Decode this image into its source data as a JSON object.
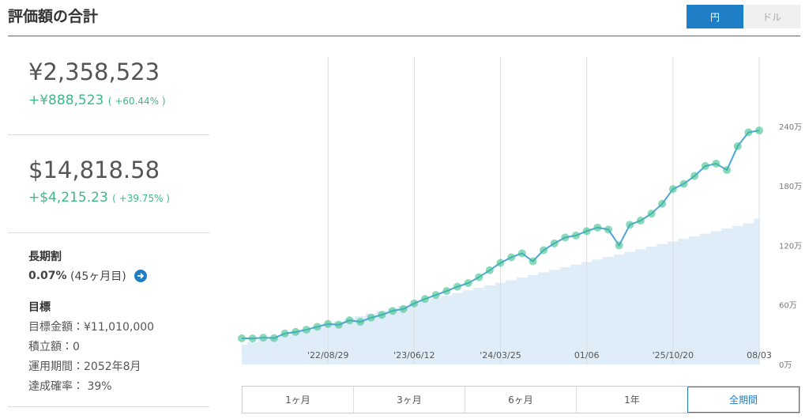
{
  "header": {
    "title": "評価額の合計",
    "currency_toggle": [
      "円",
      "ドル"
    ],
    "active_currency": 0
  },
  "summary": [
    {
      "value": "¥2,358,523",
      "change": "+¥888,523",
      "change_pct": "( +60.44% )"
    },
    {
      "value": "$14,818.58",
      "change": "+$4,215.23",
      "change_pct": "( +39.75% )"
    }
  ],
  "long_term": {
    "title": "長期割",
    "rate": "0.07%",
    "months": "(45ヶ月目)"
  },
  "goal": {
    "title": "目標",
    "items": [
      "目標金額：¥11,010,000",
      "積立額：0",
      "運用期間：2052年8月",
      "達成確率： 39%"
    ]
  },
  "chart_data": {
    "type": "line",
    "categories": [
      null,
      null,
      null,
      null,
      null,
      null,
      null,
      null,
      "'22/08/29",
      null,
      null,
      null,
      null,
      null,
      null,
      null,
      "'23/06/12",
      null,
      null,
      null,
      null,
      null,
      null,
      null,
      "'24/03/25",
      null,
      null,
      null,
      null,
      null,
      null,
      null,
      "01/06",
      null,
      null,
      null,
      null,
      null,
      null,
      null,
      "'25/10/20",
      null,
      null,
      null,
      null,
      null,
      null,
      null,
      "08/03"
    ],
    "series": [
      {
        "kind": "area",
        "color": "#deedf8",
        "values": [
          200000,
          226000,
          252000,
          278000,
          304000,
          330000,
          356000,
          382000,
          408000,
          434000,
          460000,
          486000,
          512000,
          538000,
          564000,
          590000,
          616000,
          642000,
          668000,
          694000,
          720000,
          746000,
          772000,
          798000,
          824000,
          850000,
          876000,
          902000,
          928000,
          954000,
          980000,
          1006000,
          1032000,
          1058000,
          1084000,
          1110000,
          1136000,
          1162000,
          1188000,
          1214000,
          1240000,
          1266000,
          1292000,
          1318000,
          1344000,
          1370000,
          1396000,
          1422000,
          1470000
        ]
      },
      {
        "kind": "line",
        "color": "#4ea4dc",
        "marker_color": "#3cc08e",
        "values": [
          264000,
          262000,
          270000,
          266000,
          312000,
          328000,
          350000,
          380000,
          408000,
          400000,
          445000,
          430000,
          472000,
          500000,
          540000,
          560000,
          616000,
          660000,
          700000,
          740000,
          784000,
          820000,
          880000,
          950000,
          1024000,
          1080000,
          1120000,
          1040000,
          1152000,
          1220000,
          1280000,
          1300000,
          1344000,
          1380000,
          1360000,
          1200000,
          1408000,
          1450000,
          1520000,
          1620000,
          1768000,
          1820000,
          1900000,
          2000000,
          2024000,
          1960000,
          2200000,
          2340000,
          2358523
        ]
      }
    ],
    "ylim": [
      0,
      3100000
    ],
    "yticks": [
      {
        "value": 0,
        "label": "0万"
      },
      {
        "value": 600000,
        "label": "60万"
      },
      {
        "value": 1200000,
        "label": "120万"
      },
      {
        "value": 1800000,
        "label": "180万"
      },
      {
        "value": 2400000,
        "label": "240万"
      }
    ],
    "x_grid": true
  },
  "period_buttons": [
    "1ヶ月",
    "3ヶ月",
    "6ヶ月",
    "1年",
    "全期間"
  ],
  "active_period": 4
}
